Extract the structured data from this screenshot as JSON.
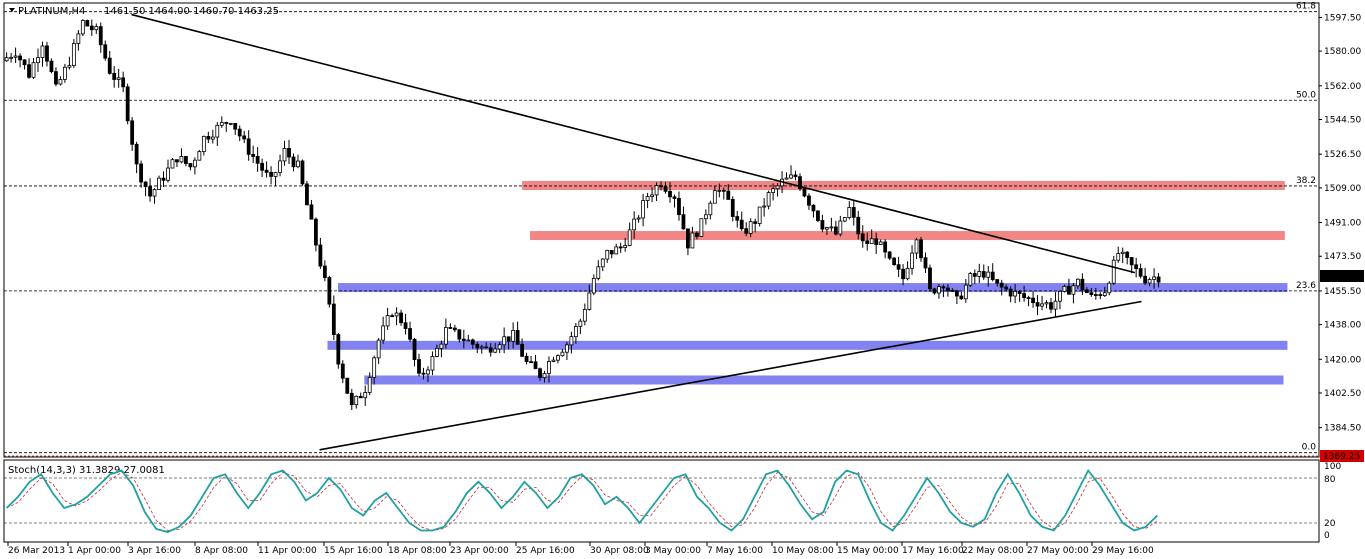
{
  "chart_data": {
    "type": "candlestick",
    "header": {
      "symbol": "PLATINUM,H4",
      "ohlc": "1461.50 1464.00 1460.70 1463.25"
    },
    "price_axis": {
      "ylim": [
        1369.25,
        1605
      ],
      "ticks": [
        "1597.50",
        "1580.00",
        "1562.00",
        "1544.50",
        "1526.50",
        "1509.00",
        "1491.00",
        "1473.50",
        "1455.50",
        "1438.00",
        "1420.00",
        "1402.50",
        "1384.50"
      ],
      "current_price": "1463.25",
      "low_marker": "1369.25"
    },
    "x_axis": {
      "ticks": [
        "26 Mar 2013",
        "1 Apr 00:00",
        "3 Apr 16:00",
        "8 Apr 08:00",
        "11 Apr 00:00",
        "15 Apr 16:00",
        "18 Apr 08:00",
        "23 Apr 00:00",
        "25 Apr 16:00",
        "30 Apr 08:00",
        "3 May 00:00",
        "7 May 16:00",
        "10 May 08:00",
        "15 May 00:00",
        "17 May 16:00",
        "22 May 08:00",
        "27 May 00:00",
        "29 May 16:00"
      ]
    },
    "fibonacci": [
      {
        "label": "61.8",
        "price": 1600.5
      },
      {
        "label": "50.0",
        "price": 1554.5
      },
      {
        "label": "38.2",
        "price": 1510
      },
      {
        "label": "23.6",
        "price": 1455.5
      },
      {
        "label": "0.0",
        "price": 1371.5
      }
    ],
    "resistance_zones": [
      {
        "price": 1510.5,
        "color": "#f08080"
      },
      {
        "price": 1484.5,
        "color": "#f08080"
      }
    ],
    "support_zones": [
      {
        "price": 1457.5,
        "color": "#7b7bf0"
      },
      {
        "price": 1427.5,
        "color": "#7b7bf0"
      },
      {
        "price": 1409.5,
        "color": "#7b7bf0"
      }
    ],
    "trendlines": [
      {
        "name": "descending",
        "from": [
          0.097,
          1599
        ],
        "to": [
          0.86,
          1465
        ]
      },
      {
        "name": "ascending",
        "from": [
          0.24,
          1373
        ],
        "to": [
          0.865,
          1450
        ]
      }
    ],
    "price_path": [
      1575,
      1580,
      1568,
      1585,
      1560,
      1575,
      1595,
      1590,
      1570,
      1560,
      1520,
      1505,
      1515,
      1525,
      1520,
      1535,
      1540,
      1545,
      1532,
      1522,
      1512,
      1528,
      1520,
      1490,
      1460,
      1420,
      1395,
      1405,
      1430,
      1445,
      1438,
      1410,
      1420,
      1435,
      1432,
      1428,
      1425,
      1430,
      1432,
      1418,
      1412,
      1422,
      1428,
      1440,
      1462,
      1475,
      1478,
      1490,
      1505,
      1512,
      1505,
      1480,
      1490,
      1510,
      1502,
      1485,
      1492,
      1505,
      1512,
      1515,
      1502,
      1490,
      1485,
      1498,
      1480,
      1482,
      1470,
      1462,
      1485,
      1455,
      1460,
      1450,
      1462,
      1465,
      1458,
      1455,
      1452,
      1450,
      1448,
      1455,
      1460,
      1452,
      1456,
      1475,
      1468,
      1462,
      1463
    ],
    "stochastic": {
      "title": "Stoch(14,3,3) 31.3829 27.0081",
      "ticks": [
        "100",
        "80",
        "20",
        "0"
      ],
      "values": [
        40,
        55,
        75,
        85,
        60,
        40,
        45,
        55,
        70,
        85,
        90,
        70,
        35,
        12,
        8,
        15,
        30,
        55,
        80,
        85,
        60,
        40,
        60,
        85,
        90,
        75,
        50,
        60,
        80,
        65,
        40,
        30,
        50,
        60,
        40,
        20,
        10,
        10,
        15,
        35,
        60,
        75,
        60,
        40,
        55,
        75,
        60,
        40,
        55,
        80,
        85,
        70,
        45,
        55,
        40,
        20,
        40,
        60,
        80,
        85,
        55,
        40,
        20,
        10,
        25,
        55,
        85,
        90,
        70,
        45,
        25,
        35,
        75,
        90,
        85,
        50,
        20,
        10,
        30,
        55,
        80,
        60,
        35,
        20,
        15,
        25,
        60,
        85,
        60,
        30,
        15,
        10,
        30,
        60,
        90,
        70,
        45,
        20,
        10,
        15,
        30
      ]
    }
  }
}
